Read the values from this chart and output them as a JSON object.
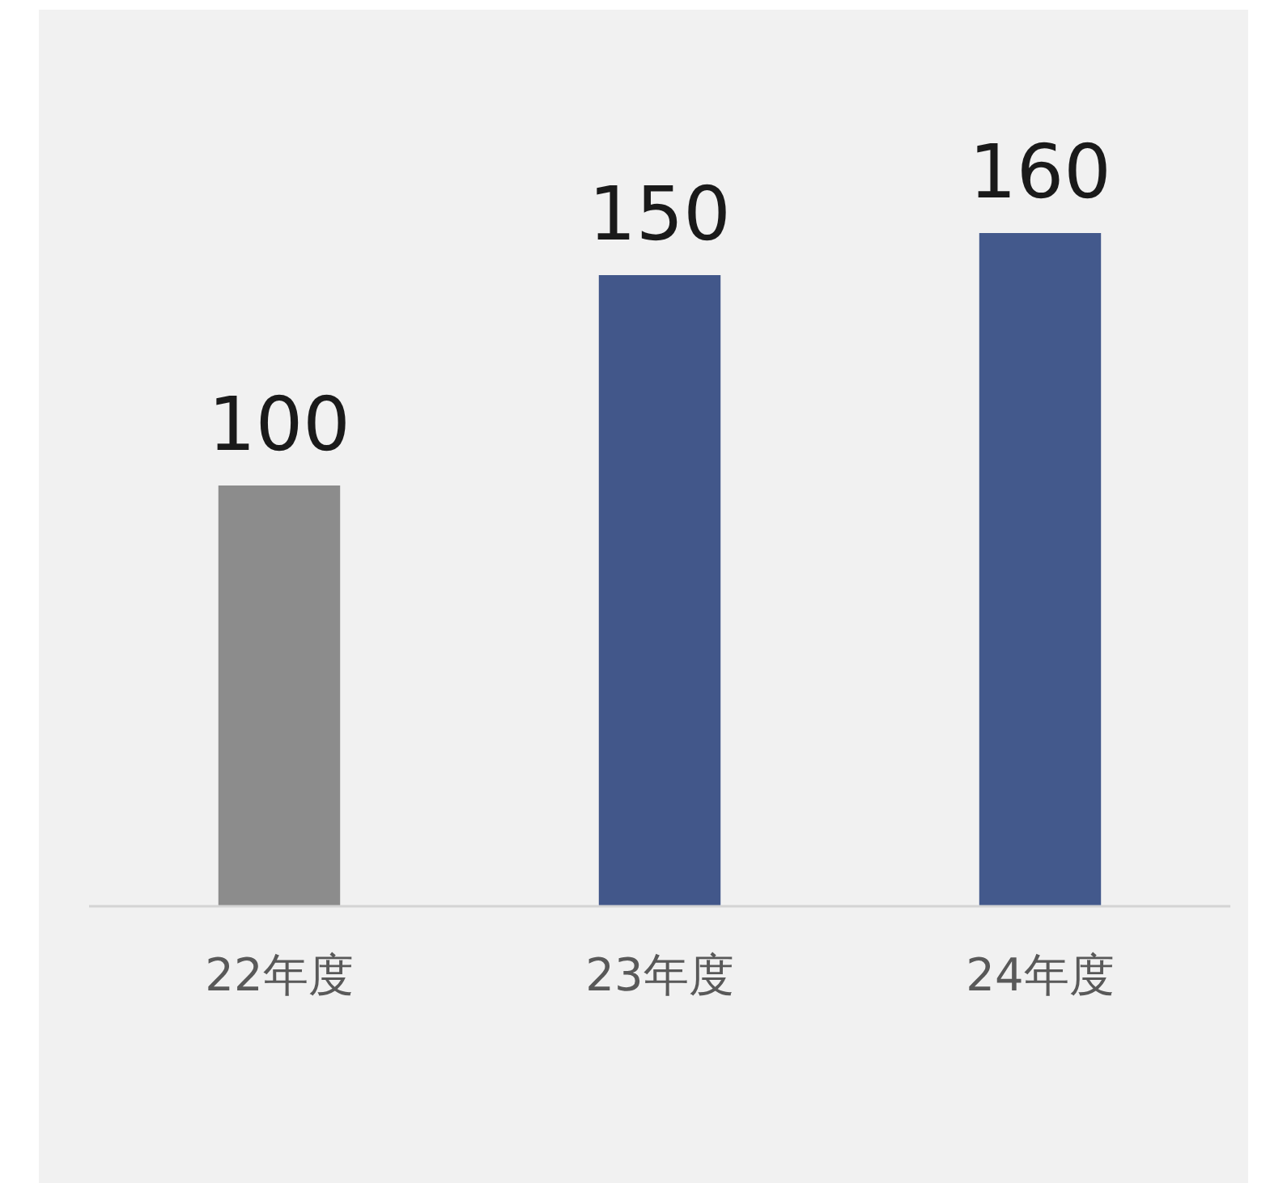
{
  "chart_data": {
    "type": "bar",
    "categories": [
      "22年度",
      "23年度",
      "24年度"
    ],
    "values": [
      100,
      150,
      160
    ],
    "colors": [
      "#8c8c8c",
      "#42578a",
      "#43598c"
    ],
    "data_labels": true
  }
}
